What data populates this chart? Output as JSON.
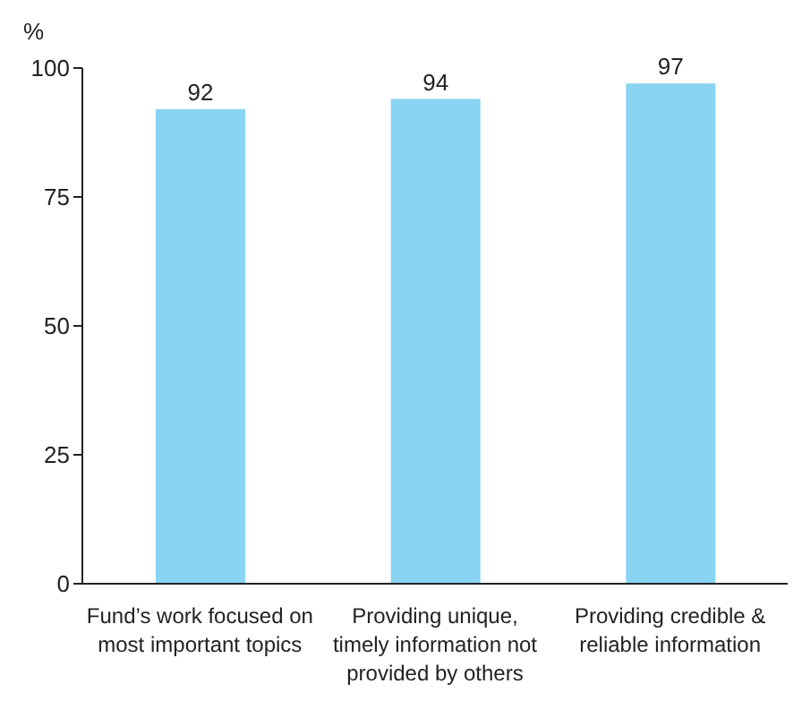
{
  "chart_data": {
    "type": "bar",
    "ylabel": "%",
    "categories": [
      "Fund’s work focused on most important topics",
      "Providing unique, timely information not provided by others",
      "Providing credible & reliable information"
    ],
    "values": [
      92,
      94,
      97
    ],
    "color": "#89d3f3",
    "ylim": [
      0,
      100
    ],
    "yticks": [
      0,
      25,
      50,
      75,
      100
    ],
    "data_labels": true
  }
}
